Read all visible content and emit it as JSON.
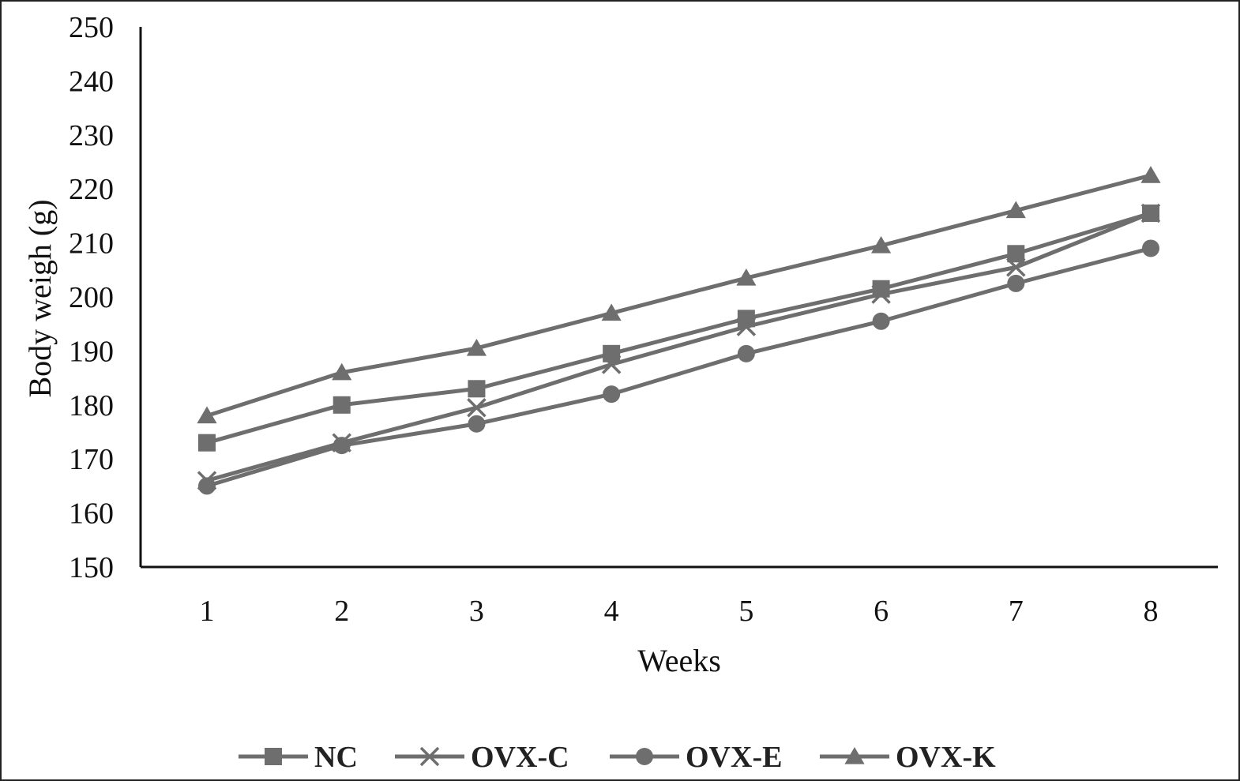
{
  "chart_data": {
    "type": "line",
    "x": [
      1,
      2,
      3,
      4,
      5,
      6,
      7,
      8
    ],
    "xticks": [
      "1",
      "2",
      "3",
      "4",
      "5",
      "6",
      "7",
      "8"
    ],
    "xlabel": "Weeks",
    "ylabel": "Body weigh (g)",
    "ylim": [
      150,
      250
    ],
    "yticks": [
      "150",
      "160",
      "170",
      "180",
      "190",
      "200",
      "210",
      "220",
      "230",
      "240",
      "250"
    ],
    "grid": false,
    "legend_position": "bottom",
    "line_color": "#6e6e6e",
    "series": [
      {
        "name": "NC",
        "marker": "square",
        "values": [
          173,
          180,
          183,
          189.5,
          196,
          201.5,
          208,
          215.5
        ]
      },
      {
        "name": "OVX-C",
        "marker": "x",
        "values": [
          166,
          173,
          179.5,
          187.5,
          194.5,
          200.5,
          205.5,
          215.5
        ]
      },
      {
        "name": "OVX-E",
        "marker": "circle",
        "values": [
          165,
          172.5,
          176.5,
          182,
          189.5,
          195.5,
          202.5,
          209
        ]
      },
      {
        "name": "OVX-K",
        "marker": "triangle",
        "values": [
          178,
          186,
          190.5,
          197,
          203.5,
          209.5,
          216,
          222.5
        ]
      }
    ]
  }
}
